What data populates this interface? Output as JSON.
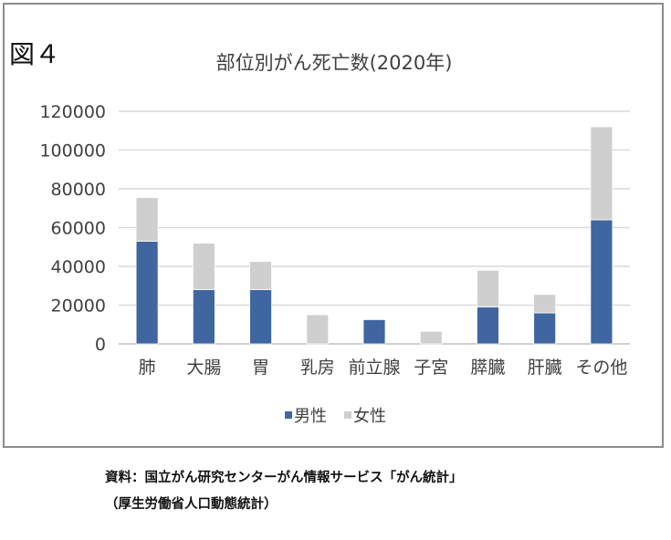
{
  "figure_label": "図４",
  "source_note": {
    "line1": "資料：国立がん研究センターがん情報サービス「がん統計」",
    "line2": "（厚生労働省人口動態統計）"
  },
  "colors": {
    "male": "#3f66a0",
    "female": "#cfcfcf",
    "grid": "#d9d9d9",
    "axis": "#bfbfbf"
  },
  "chart_data": {
    "type": "bar",
    "stacked": true,
    "title": "部位別がん死亡数(2020年)",
    "categories": [
      "肺",
      "大腸",
      "胃",
      "乳房",
      "前立腺",
      "子宮",
      "膵臓",
      "肝臓",
      "その他"
    ],
    "series": [
      {
        "name": "男性",
        "values": [
          53000,
          28000,
          28000,
          0,
          12500,
          0,
          19000,
          16000,
          64000
        ]
      },
      {
        "name": "女性",
        "values": [
          22500,
          24000,
          14500,
          15000,
          0,
          6500,
          19000,
          9500,
          48000
        ]
      }
    ],
    "yticks": [
      "0",
      "20000",
      "40000",
      "60000",
      "80000",
      "100000",
      "120000"
    ],
    "ylim": [
      0,
      120000
    ],
    "grid": true,
    "legend": "bottom"
  }
}
